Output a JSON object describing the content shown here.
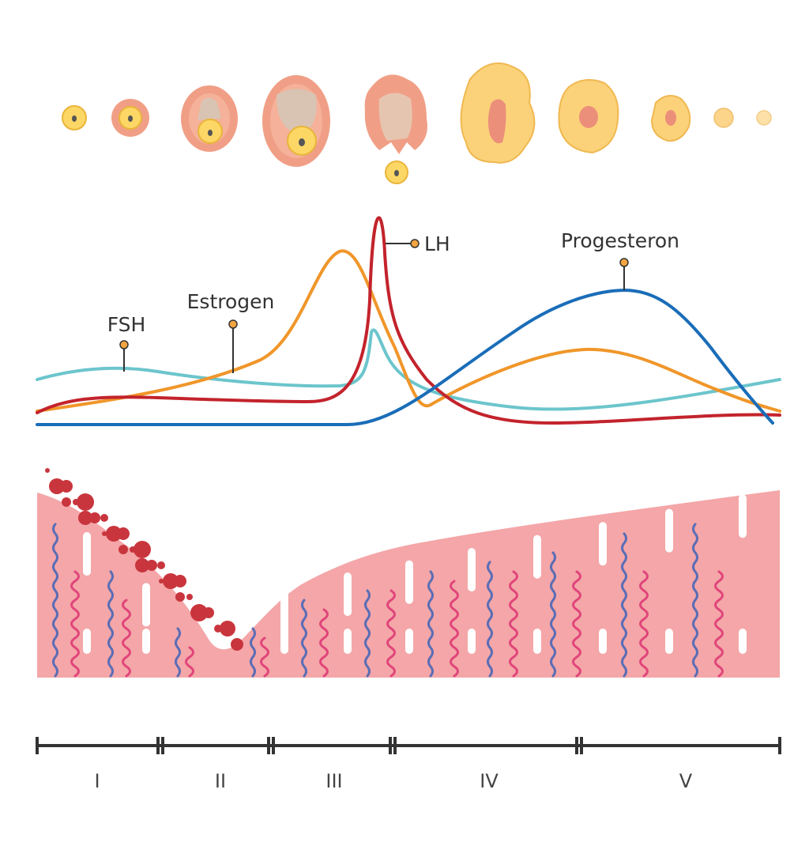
{
  "hormones": {
    "fsh": {
      "label": "FSH",
      "color": "#6cc5cc"
    },
    "estrogen": {
      "label": "Estrogen",
      "color": "#f0962a"
    },
    "lh": {
      "label": "LH",
      "color": "#c3232c"
    },
    "progesterone": {
      "label": "Progesteron",
      "color": "#1a6db8"
    }
  },
  "callout_dot_color": "#f2a541",
  "endometrium": {
    "tissue_color": "#f4a6a8",
    "vessel_blue": "#5b6db5",
    "vessel_pink": "#e0457a",
    "blood_color": "#c9353d"
  },
  "phases": [
    "I",
    "II",
    "III",
    "IV",
    "V"
  ]
}
